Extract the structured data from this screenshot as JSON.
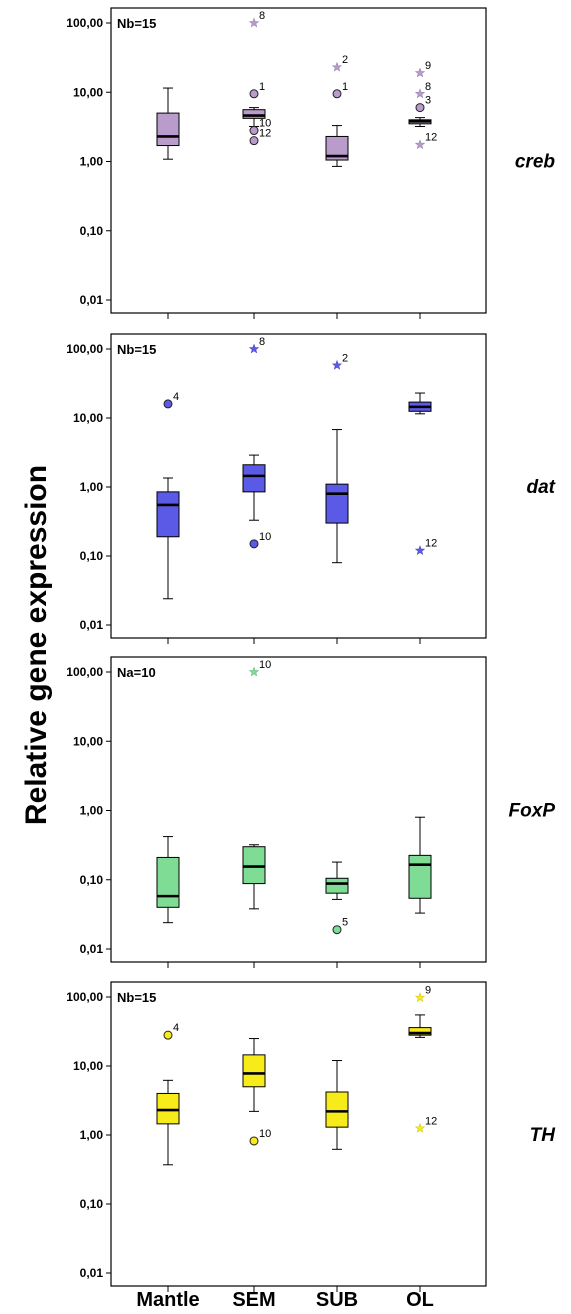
{
  "figure": {
    "ylabel": "Relative gene expression",
    "categories": [
      "Mantle",
      "SEM",
      "SUB",
      "OL"
    ],
    "ytick_labels": [
      "0,01",
      "0,10",
      "1,00",
      "10,00",
      "100,00"
    ]
  },
  "chart_data": [
    {
      "type": "box",
      "gene": "creb",
      "sample_label": "Nb=15",
      "y_scale": "log",
      "ylim": [
        0.005,
        200
      ],
      "ytick_values": [
        0.01,
        0.1,
        1,
        10,
        100
      ],
      "ytick_labels": [
        "0,01",
        "0,10",
        "1,00",
        "10,00",
        "100,00"
      ],
      "categories": [
        "Mantle",
        "SEM",
        "SUB",
        "OL"
      ],
      "color": "#b99bcc",
      "boxes": [
        {
          "category": "Mantle",
          "whisker_low": 1.08,
          "q1": 1.7,
          "median": 2.3,
          "q3": 5.0,
          "whisker_high": 11.5
        },
        {
          "category": "SEM",
          "whisker_low": 3.2,
          "q1": 4.2,
          "median": 4.6,
          "q3": 5.6,
          "whisker_high": 6.0
        },
        {
          "category": "SUB",
          "whisker_low": 0.85,
          "q1": 1.05,
          "median": 1.2,
          "q3": 2.3,
          "whisker_high": 3.3
        },
        {
          "category": "OL",
          "whisker_low": 3.2,
          "q1": 3.5,
          "median": 3.8,
          "q3": 4.0,
          "whisker_high": 4.3
        }
      ],
      "outliers": [
        {
          "category": "SEM",
          "value": 100,
          "label": "8",
          "marker": "star"
        },
        {
          "category": "SEM",
          "value": 9.5,
          "label": "1",
          "marker": "circle"
        },
        {
          "category": "SEM",
          "value": 2.8,
          "label": "10",
          "marker": "circle"
        },
        {
          "category": "SEM",
          "value": 2.0,
          "label": "12",
          "marker": "circle"
        },
        {
          "category": "SUB",
          "value": 23,
          "label": "2",
          "marker": "star"
        },
        {
          "category": "SUB",
          "value": 9.5,
          "label": "1",
          "marker": "circle"
        },
        {
          "category": "OL",
          "value": 19,
          "label": "9",
          "marker": "star"
        },
        {
          "category": "OL",
          "value": 9.5,
          "label": "8",
          "marker": "star"
        },
        {
          "category": "OL",
          "value": 6.0,
          "label": "3",
          "marker": "circle"
        },
        {
          "category": "OL",
          "value": 1.75,
          "label": "12",
          "marker": "star"
        }
      ]
    },
    {
      "type": "box",
      "gene": "dat",
      "sample_label": "Nb=15",
      "y_scale": "log",
      "ylim": [
        0.005,
        200
      ],
      "ytick_values": [
        0.01,
        0.1,
        1,
        10,
        100
      ],
      "ytick_labels": [
        "0,01",
        "0,10",
        "1,00",
        "10,00",
        "100,00"
      ],
      "categories": [
        "Mantle",
        "SEM",
        "SUB",
        "OL"
      ],
      "color": "#5a5ae6",
      "boxes": [
        {
          "category": "Mantle",
          "whisker_low": 0.024,
          "q1": 0.19,
          "median": 0.55,
          "q3": 0.85,
          "whisker_high": 1.35
        },
        {
          "category": "SEM",
          "whisker_low": 0.33,
          "q1": 0.85,
          "median": 1.45,
          "q3": 2.1,
          "whisker_high": 2.9
        },
        {
          "category": "SUB",
          "whisker_low": 0.08,
          "q1": 0.3,
          "median": 0.8,
          "q3": 1.1,
          "whisker_high": 6.8
        },
        {
          "category": "OL",
          "whisker_low": 11.5,
          "q1": 12.5,
          "median": 14.5,
          "q3": 17,
          "whisker_high": 23
        }
      ],
      "outliers": [
        {
          "category": "Mantle",
          "value": 16,
          "label": "4",
          "marker": "circle"
        },
        {
          "category": "SEM",
          "value": 100,
          "label": "8",
          "marker": "star"
        },
        {
          "category": "SEM",
          "value": 0.15,
          "label": "10",
          "marker": "circle"
        },
        {
          "category": "SUB",
          "value": 58,
          "label": "2",
          "marker": "star"
        },
        {
          "category": "OL",
          "value": 0.12,
          "label": "12",
          "marker": "star"
        }
      ]
    },
    {
      "type": "box",
      "gene": "FoxP",
      "sample_label": "Na=10",
      "y_scale": "log",
      "ylim": [
        0.005,
        200
      ],
      "ytick_values": [
        0.01,
        0.1,
        1,
        10,
        100
      ],
      "ytick_labels": [
        "0,01",
        "0,10",
        "1,00",
        "10,00",
        "100,00"
      ],
      "categories": [
        "Mantle",
        "SEM",
        "SUB",
        "OL"
      ],
      "color": "#7fdc94",
      "boxes": [
        {
          "category": "Mantle",
          "whisker_low": 0.024,
          "q1": 0.04,
          "median": 0.058,
          "q3": 0.21,
          "whisker_high": 0.42
        },
        {
          "category": "SEM",
          "whisker_low": 0.038,
          "q1": 0.088,
          "median": 0.155,
          "q3": 0.3,
          "whisker_high": 0.32
        },
        {
          "category": "SUB",
          "whisker_low": 0.052,
          "q1": 0.064,
          "median": 0.088,
          "q3": 0.105,
          "whisker_high": 0.18
        },
        {
          "category": "OL",
          "whisker_low": 0.033,
          "q1": 0.054,
          "median": 0.165,
          "q3": 0.225,
          "whisker_high": 0.8
        }
      ],
      "outliers": [
        {
          "category": "SEM",
          "value": 100,
          "label": "10",
          "marker": "star"
        },
        {
          "category": "SUB",
          "value": 0.019,
          "label": "5",
          "marker": "circle"
        }
      ]
    },
    {
      "type": "box",
      "gene": "TH",
      "sample_label": "Nb=15",
      "y_scale": "log",
      "ylim": [
        0.005,
        200
      ],
      "ytick_values": [
        0.01,
        0.1,
        1,
        10,
        100
      ],
      "ytick_labels": [
        "0,01",
        "0,10",
        "1,00",
        "10,00",
        "100,00"
      ],
      "categories": [
        "Mantle",
        "SEM",
        "SUB",
        "OL"
      ],
      "color": "#f7ec1a",
      "boxes": [
        {
          "category": "Mantle",
          "whisker_low": 0.37,
          "q1": 1.45,
          "median": 2.3,
          "q3": 4.0,
          "whisker_high": 6.2
        },
        {
          "category": "SEM",
          "whisker_low": 2.2,
          "q1": 5.0,
          "median": 7.8,
          "q3": 14.5,
          "whisker_high": 25
        },
        {
          "category": "SUB",
          "whisker_low": 0.62,
          "q1": 1.3,
          "median": 2.2,
          "q3": 4.2,
          "whisker_high": 12
        },
        {
          "category": "OL",
          "whisker_low": 26,
          "q1": 28,
          "median": 30,
          "q3": 36,
          "whisker_high": 55
        }
      ],
      "outliers": [
        {
          "category": "Mantle",
          "value": 28,
          "label": "4",
          "marker": "circle"
        },
        {
          "category": "SEM",
          "value": 0.82,
          "label": "10",
          "marker": "circle"
        },
        {
          "category": "OL",
          "value": 98,
          "label": "9",
          "marker": "star"
        },
        {
          "category": "OL",
          "value": 1.25,
          "label": "12",
          "marker": "star"
        }
      ]
    }
  ]
}
